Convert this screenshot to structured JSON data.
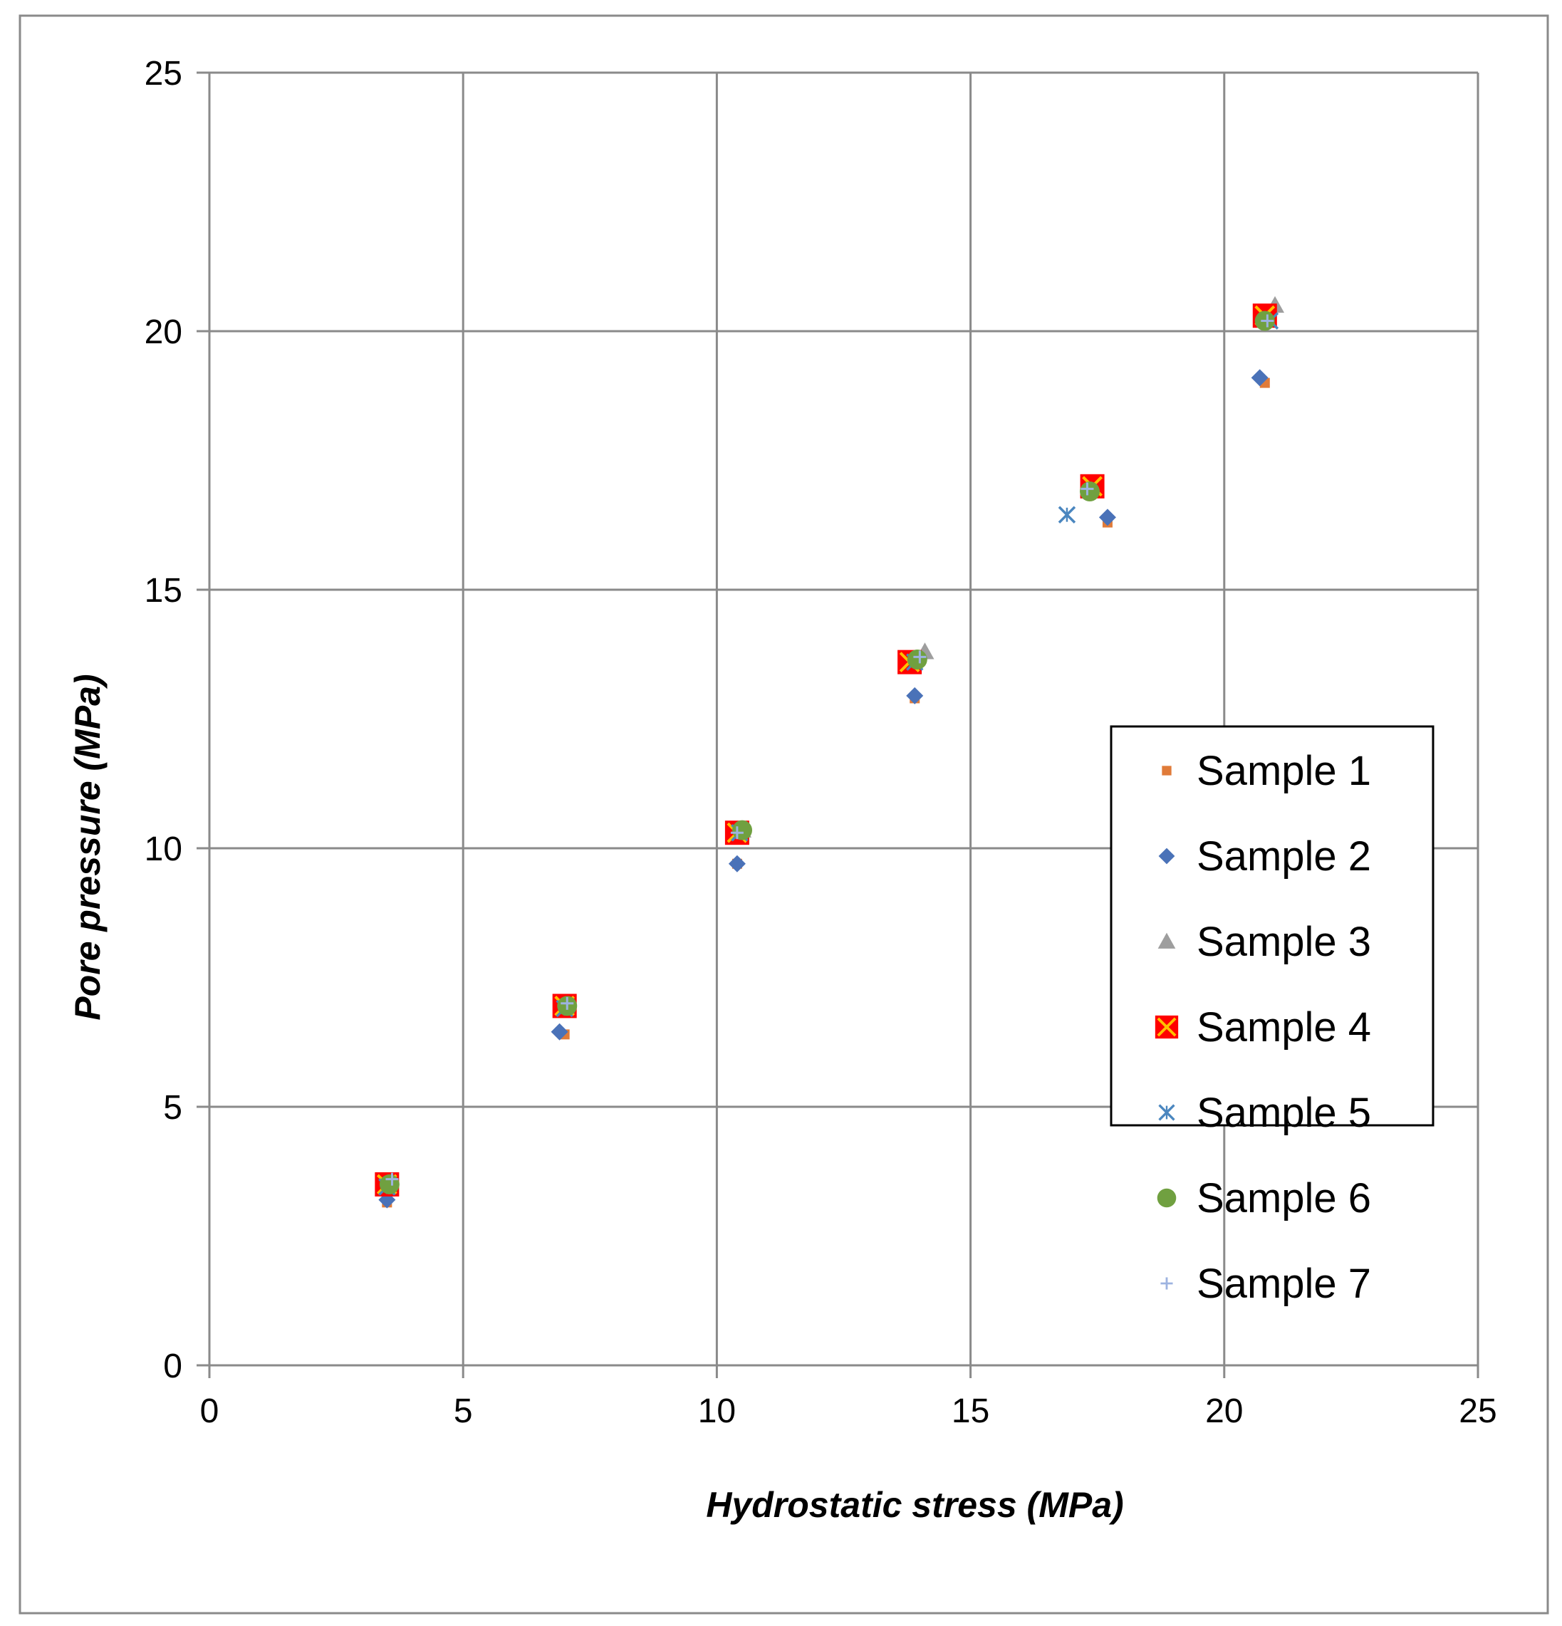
{
  "chart_data": {
    "type": "scatter",
    "title": "",
    "xlabel": "Hydrostatic stress (MPa)",
    "ylabel": "Pore pressure (MPa)",
    "xlim": [
      0,
      25
    ],
    "ylim": [
      0,
      25
    ],
    "x_ticks": [
      "0",
      "5",
      "10",
      "15",
      "20",
      "25"
    ],
    "y_ticks": [
      "0",
      "5",
      "10",
      "15",
      "20",
      "25"
    ],
    "grid": true,
    "legend_position": "right",
    "series": [
      {
        "name": "Sample 1",
        "marker": "square-small",
        "color": "#e07b39",
        "points": [
          [
            3.5,
            3.15
          ],
          [
            7.0,
            6.4
          ],
          [
            10.4,
            9.7
          ],
          [
            13.9,
            12.9
          ],
          [
            17.7,
            16.3
          ],
          [
            20.8,
            19.0
          ]
        ]
      },
      {
        "name": "Sample 2",
        "marker": "diamond",
        "color": "#4a72b8",
        "points": [
          [
            3.5,
            3.2
          ],
          [
            6.9,
            6.45
          ],
          [
            10.4,
            9.7
          ],
          [
            13.9,
            12.95
          ],
          [
            17.7,
            16.4
          ],
          [
            20.7,
            19.1
          ]
        ]
      },
      {
        "name": "Sample 3",
        "marker": "triangle",
        "color": "#9e9e9e",
        "points": [
          [
            3.55,
            3.55
          ],
          [
            7.05,
            7.0
          ],
          [
            10.5,
            10.35
          ],
          [
            14.1,
            13.8
          ],
          [
            17.45,
            17.0
          ],
          [
            21.0,
            20.5
          ]
        ]
      },
      {
        "name": "Sample 4",
        "marker": "square-x",
        "color": "#ff0000",
        "points": [
          [
            3.5,
            3.5
          ],
          [
            7.0,
            6.95
          ],
          [
            10.4,
            10.3
          ],
          [
            13.8,
            13.6
          ],
          [
            17.4,
            17.0
          ],
          [
            20.8,
            20.3
          ]
        ]
      },
      {
        "name": "Sample 5",
        "marker": "asterisk",
        "color": "#4a86bf",
        "points": [
          [
            3.5,
            3.45
          ],
          [
            7.0,
            6.9
          ],
          [
            10.45,
            10.3
          ],
          [
            13.9,
            13.6
          ],
          [
            16.9,
            16.45
          ],
          [
            20.9,
            20.2
          ]
        ]
      },
      {
        "name": "Sample 6",
        "marker": "circle",
        "color": "#70a040",
        "points": [
          [
            3.55,
            3.5
          ],
          [
            7.05,
            6.95
          ],
          [
            10.5,
            10.35
          ],
          [
            13.95,
            13.65
          ],
          [
            17.35,
            16.9
          ],
          [
            20.8,
            20.2
          ]
        ]
      },
      {
        "name": "Sample 7",
        "marker": "plus",
        "color": "#9db3e0",
        "points": [
          [
            3.6,
            3.6
          ],
          [
            7.05,
            7.0
          ],
          [
            10.4,
            10.3
          ],
          [
            14.0,
            13.7
          ],
          [
            17.3,
            16.95
          ],
          [
            20.85,
            20.2
          ]
        ]
      }
    ]
  }
}
